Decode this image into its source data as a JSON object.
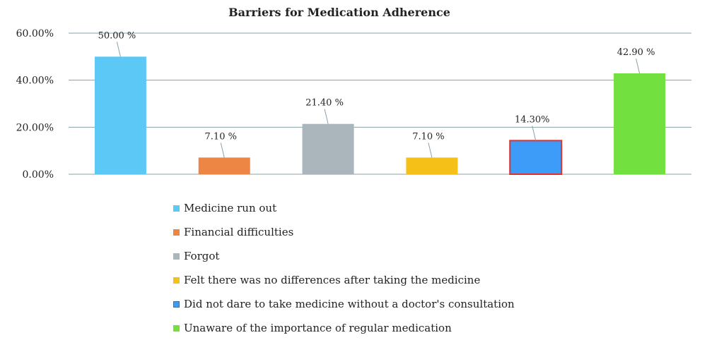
{
  "chart_data": {
    "type": "bar",
    "title": "Barriers for Medication Adherence",
    "categories": [
      "Medicine run out",
      "Financial difficulties",
      "Forgot",
      "Felt there was no differences after taking the medicine",
      "Did not dare to take medicine without a doctor's consultation",
      "Unaware of the importance of regular medication"
    ],
    "values": [
      50.0,
      7.1,
      21.4,
      7.1,
      14.3,
      42.9
    ],
    "data_labels": [
      "50.00 %",
      "7.10 %",
      "21.40 %",
      "7.10 %",
      "14.30%",
      "42.90 %"
    ],
    "colors": [
      "#5bc8f5",
      "#ed8645",
      "#aab6bc",
      "#f5c018",
      "#3d9cf7",
      "#72e03e"
    ],
    "highlight_border": [
      null,
      null,
      null,
      null,
      "#e03030",
      null
    ],
    "yticks": [
      0,
      20,
      40,
      60
    ],
    "ytick_labels": [
      "0.00%",
      "20.00%",
      "40.00%",
      "60.00%"
    ],
    "ylim": [
      0,
      60
    ],
    "xlabel": "",
    "ylabel": "",
    "grid": true,
    "legend_position": "bottom"
  }
}
